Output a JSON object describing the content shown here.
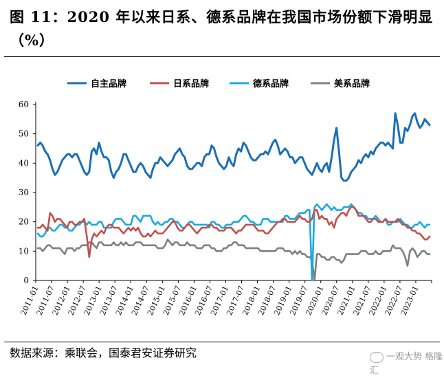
{
  "title": "图 11：2020 年以来日系、德系品牌在我国市场份额下滑明显（%）",
  "source": "数据来源：乘联会，国泰君安证券研究",
  "watermark": "一观大势 格隆汇",
  "chart_data": {
    "type": "line",
    "ylim": [
      0,
      60
    ],
    "yticks": [
      0,
      10,
      20,
      30,
      40,
      50,
      60
    ],
    "xlabels": [
      "2011-01",
      "2011-07",
      "2012-01",
      "2012-07",
      "2013-01",
      "2013-07",
      "2014-01",
      "2014-07",
      "2015-01",
      "2015-07",
      "2016-01",
      "2016-07",
      "2017-01",
      "2017-07",
      "2018-01",
      "2018-07",
      "2019-01",
      "2019-07",
      "2020-01",
      "2020-07",
      "2021-01",
      "2021-07",
      "2022-01",
      "2022-07",
      "2023-01"
    ],
    "legend_position": "top",
    "grid": false,
    "series": [
      {
        "name": "自主品牌",
        "color": "#1a6fb5",
        "values": [
          46,
          47,
          46,
          44,
          43,
          41,
          38,
          36,
          37,
          39,
          41,
          42,
          43,
          43,
          42,
          43,
          43,
          41,
          39,
          37,
          36,
          37,
          44,
          45,
          43,
          47,
          44,
          42,
          42,
          41,
          37,
          35,
          37,
          38,
          40,
          43,
          43,
          41,
          39,
          37,
          37,
          39,
          40,
          39,
          37,
          36,
          35,
          38,
          40,
          40,
          42,
          41,
          40,
          39,
          40,
          41,
          43,
          44,
          45,
          43,
          42,
          39,
          38,
          38,
          39,
          40,
          40,
          39,
          42,
          43,
          43,
          46,
          45,
          42,
          40,
          39,
          38,
          39,
          42,
          40,
          39,
          43,
          45,
          44,
          47,
          46,
          44,
          42,
          41,
          41,
          42,
          43,
          43,
          44,
          43,
          45,
          47,
          48,
          46,
          43,
          44,
          45,
          44,
          42,
          42,
          40,
          41,
          42,
          42,
          40,
          38,
          37,
          36,
          38,
          40,
          38,
          37,
          39,
          40,
          37,
          42,
          48,
          52,
          44,
          35,
          34,
          34,
          35,
          37,
          38,
          39,
          41,
          40,
          42,
          43,
          42,
          44,
          43,
          45,
          46,
          47,
          47,
          46,
          47,
          46,
          45,
          57,
          53,
          47,
          47,
          52,
          51,
          53,
          56,
          57,
          54,
          52,
          53,
          55,
          54,
          53
        ]
      },
      {
        "name": "日系品牌",
        "color": "#c0504d",
        "values": [
          18,
          18,
          19,
          18,
          17,
          23,
          22,
          20,
          21,
          21,
          20,
          19,
          18,
          20,
          20,
          19,
          19,
          20,
          20,
          21,
          15,
          8,
          14,
          16,
          15,
          16,
          17,
          16,
          18,
          19,
          19,
          18,
          18,
          18,
          17,
          16,
          17,
          18,
          17,
          18,
          17,
          18,
          16,
          15,
          15,
          16,
          15,
          16,
          17,
          16,
          16,
          16,
          17,
          18,
          19,
          20,
          20,
          18,
          17,
          17,
          18,
          19,
          19,
          18,
          17,
          16,
          17,
          18,
          18,
          18,
          19,
          19,
          18,
          18,
          17,
          17,
          17,
          18,
          18,
          18,
          17,
          16,
          17,
          17,
          18,
          19,
          19,
          19,
          19,
          18,
          17,
          17,
          17,
          16,
          16,
          17,
          18,
          19,
          20,
          20,
          21,
          21,
          20,
          20,
          20,
          20,
          21,
          22,
          21,
          21,
          20,
          20,
          21,
          24,
          24,
          21,
          22,
          21,
          21,
          19,
          20,
          18,
          21,
          22,
          23,
          23,
          22,
          24,
          25,
          25,
          24,
          22,
          22,
          22,
          21,
          20,
          20,
          21,
          21,
          20,
          20,
          20,
          21,
          20,
          20,
          20,
          20,
          21,
          20,
          19,
          19,
          18,
          18,
          17,
          17,
          16,
          16,
          15,
          14,
          14,
          15
        ]
      },
      {
        "name": "德系品牌",
        "color": "#19a9e3",
        "values": [
          16,
          15,
          15,
          16,
          18,
          18,
          17,
          17,
          18,
          19,
          19,
          18,
          18,
          17,
          17,
          18,
          19,
          19,
          20,
          20,
          19,
          20,
          19,
          19,
          19,
          20,
          20,
          18,
          18,
          18,
          18,
          20,
          21,
          21,
          21,
          20,
          19,
          19,
          19,
          22,
          22,
          21,
          20,
          22,
          22,
          22,
          22,
          20,
          19,
          20,
          19,
          19,
          20,
          20,
          21,
          21,
          20,
          20,
          19,
          18,
          18,
          19,
          20,
          20,
          19,
          19,
          19,
          19,
          19,
          19,
          18,
          20,
          20,
          19,
          19,
          18,
          18,
          19,
          19,
          19,
          20,
          20,
          20,
          21,
          22,
          22,
          21,
          20,
          20,
          19,
          19,
          19,
          21,
          21,
          21,
          20,
          20,
          20,
          20,
          20,
          20,
          22,
          22,
          21,
          21,
          21,
          22,
          23,
          23,
          23,
          24,
          24,
          0,
          25,
          26,
          25,
          24,
          25,
          26,
          25,
          24,
          25,
          24,
          24,
          24,
          25,
          25,
          25,
          26,
          25,
          24,
          23,
          23,
          22,
          22,
          21,
          21,
          21,
          22,
          21,
          20,
          20,
          21,
          19,
          19,
          20,
          20,
          20,
          21,
          20,
          19,
          19,
          18,
          18,
          19,
          19,
          20,
          19,
          18,
          19,
          19
        ]
      },
      {
        "name": "美系品牌",
        "color": "#7f7f7f",
        "values": [
          11,
          11,
          10,
          11,
          12,
          12,
          11,
          11,
          11,
          11,
          10,
          9,
          11,
          11,
          11,
          10,
          11,
          11,
          12,
          12,
          12,
          13,
          13,
          12,
          11,
          13,
          13,
          12,
          12,
          12,
          12,
          13,
          12,
          12,
          13,
          12,
          13,
          12,
          12,
          12,
          13,
          13,
          13,
          12,
          12,
          12,
          12,
          12,
          12,
          11,
          11,
          11,
          12,
          14,
          13,
          12,
          13,
          13,
          12,
          12,
          12,
          13,
          12,
          12,
          12,
          11,
          11,
          11,
          12,
          12,
          12,
          11,
          11,
          10,
          10,
          10,
          11,
          11,
          12,
          12,
          13,
          13,
          12,
          12,
          12,
          11,
          11,
          11,
          11,
          11,
          11,
          10,
          10,
          10,
          10,
          10,
          10,
          10,
          11,
          11,
          11,
          10,
          10,
          10,
          9,
          10,
          9,
          10,
          9,
          9,
          8,
          8,
          7,
          0,
          9,
          9,
          8,
          8,
          7,
          7,
          8,
          8,
          7,
          7,
          6,
          7,
          9,
          9,
          9,
          9,
          9,
          9,
          10,
          10,
          10,
          9,
          9,
          9,
          10,
          9,
          9,
          10,
          10,
          10,
          10,
          12,
          11,
          11,
          11,
          10,
          8,
          5,
          10,
          11,
          10,
          8,
          9,
          10,
          10,
          9,
          9
        ]
      }
    ]
  }
}
